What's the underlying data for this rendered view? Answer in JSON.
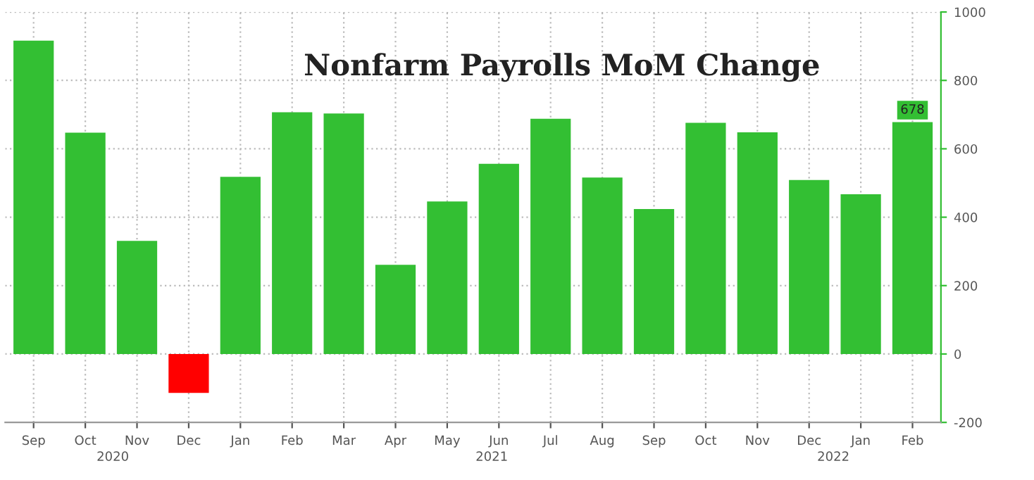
{
  "chart_data": {
    "type": "bar",
    "title": "Nonfarm Payrolls MoM Change",
    "categories": [
      "Sep",
      "Oct",
      "Nov",
      "Dec",
      "Jan",
      "Feb",
      "Mar",
      "Apr",
      "May",
      "Jun",
      "Jul",
      "Aug",
      "Sep",
      "Oct",
      "Nov",
      "Dec",
      "Jan",
      "Feb"
    ],
    "values": [
      916,
      647,
      331,
      -114,
      518,
      707,
      703,
      261,
      446,
      556,
      688,
      516,
      424,
      676,
      648,
      509,
      467,
      678
    ],
    "colors": [
      "#33bf33",
      "#33bf33",
      "#33bf33",
      "#ff0000",
      "#33bf33",
      "#33bf33",
      "#33bf33",
      "#33bf33",
      "#33bf33",
      "#33bf33",
      "#33bf33",
      "#33bf33",
      "#33bf33",
      "#33bf33",
      "#33bf33",
      "#33bf33",
      "#33bf33",
      "#33bf33"
    ],
    "value_labels": [
      null,
      null,
      null,
      null,
      null,
      null,
      null,
      null,
      null,
      null,
      null,
      null,
      null,
      null,
      null,
      null,
      null,
      "678"
    ],
    "annotations": [
      "2020",
      "2021",
      "2022"
    ],
    "ylim": [
      -200,
      1000
    ],
    "yticks": [
      -200,
      0,
      200,
      400,
      600,
      800,
      1000
    ],
    "grid": true
  }
}
